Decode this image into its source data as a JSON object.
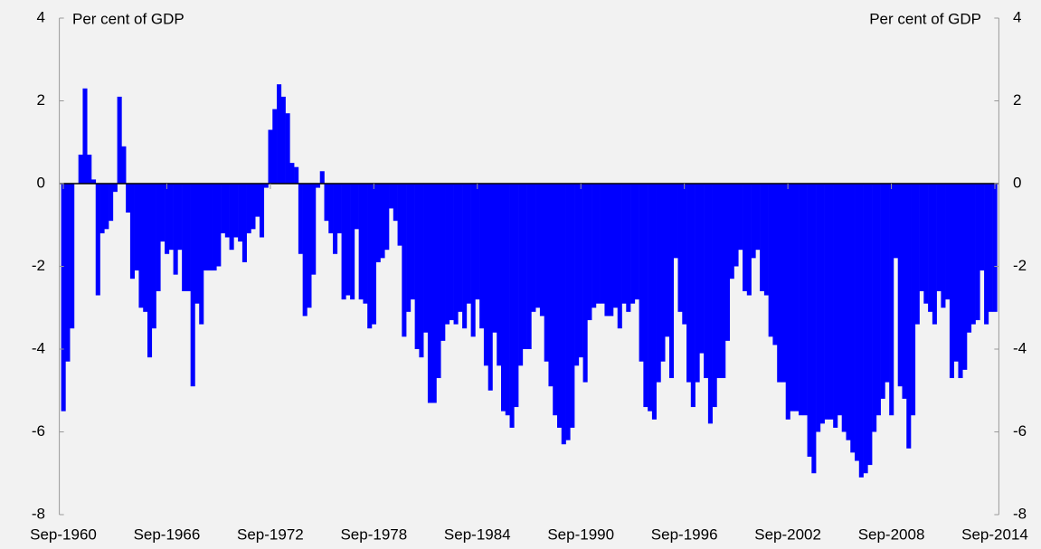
{
  "chart_data": {
    "type": "bar",
    "y_label": "Per cent of GDP",
    "y2_label": "Per cent of GDP",
    "color": "#0000ff",
    "ylim": [
      -8,
      4
    ],
    "yticks": [
      -8,
      -6,
      -4,
      -2,
      0,
      2,
      4
    ],
    "y2lim": [
      -8,
      4
    ],
    "y2ticks": [
      -8,
      -6,
      -4,
      -2,
      0,
      2,
      4
    ],
    "grid": false,
    "categories": [
      "Sep-1960",
      null,
      null,
      null,
      null,
      null,
      null,
      null,
      null,
      null,
      null,
      null,
      null,
      null,
      null,
      null,
      null,
      null,
      null,
      null,
      null,
      null,
      null,
      null,
      "Sep-1966",
      null,
      null,
      null,
      null,
      null,
      null,
      null,
      null,
      null,
      null,
      null,
      null,
      null,
      null,
      null,
      null,
      null,
      null,
      null,
      null,
      null,
      null,
      null,
      "Sep-1972",
      null,
      null,
      null,
      null,
      null,
      null,
      null,
      null,
      null,
      null,
      null,
      null,
      null,
      null,
      null,
      null,
      null,
      null,
      null,
      null,
      null,
      null,
      null,
      "Sep-1978",
      null,
      null,
      null,
      null,
      null,
      null,
      null,
      null,
      null,
      null,
      null,
      null,
      null,
      null,
      null,
      null,
      null,
      null,
      null,
      null,
      null,
      null,
      null,
      "Sep-1984",
      null,
      null,
      null,
      null,
      null,
      null,
      null,
      null,
      null,
      null,
      null,
      null,
      null,
      null,
      null,
      null,
      null,
      null,
      null,
      null,
      null,
      null,
      null,
      "Sep-1990",
      null,
      null,
      null,
      null,
      null,
      null,
      null,
      null,
      null,
      null,
      null,
      null,
      null,
      null,
      null,
      null,
      null,
      null,
      null,
      null,
      null,
      null,
      null,
      "Sep-1996",
      null,
      null,
      null,
      null,
      null,
      null,
      null,
      null,
      null,
      null,
      null,
      null,
      null,
      null,
      null,
      null,
      null,
      null,
      null,
      null,
      null,
      null,
      null,
      "Sep-2002",
      null,
      null,
      null,
      null,
      null,
      null,
      null,
      null,
      null,
      null,
      null,
      null,
      null,
      null,
      null,
      null,
      null,
      null,
      null,
      null,
      null,
      null,
      null,
      "Sep-2008",
      null,
      null,
      null,
      null,
      null,
      null,
      null,
      null,
      null,
      null,
      null,
      null,
      null,
      null,
      null,
      null,
      null,
      null,
      null,
      null,
      null,
      null,
      null,
      "Sep-2014"
    ],
    "values": [
      -5.5,
      -4.3,
      -3.5,
      0.0,
      0.7,
      2.3,
      0.7,
      0.1,
      -2.7,
      -1.2,
      -1.1,
      -0.9,
      -0.2,
      2.1,
      0.9,
      -0.7,
      -2.3,
      -2.1,
      -3.0,
      -3.1,
      -4.2,
      -3.5,
      -2.6,
      -1.4,
      -1.7,
      -1.6,
      -2.2,
      -1.6,
      -2.6,
      -2.6,
      -4.9,
      -2.9,
      -3.4,
      -2.1,
      -2.1,
      -2.1,
      -2.0,
      -1.2,
      -1.3,
      -1.6,
      -1.3,
      -1.4,
      -1.9,
      -1.2,
      -1.1,
      -0.8,
      -1.3,
      -0.1,
      1.3,
      1.8,
      2.4,
      2.1,
      1.7,
      0.5,
      0.4,
      -1.7,
      -3.2,
      -3.0,
      -2.2,
      -0.1,
      0.3,
      -0.9,
      -1.2,
      -1.7,
      -1.2,
      -2.8,
      -2.7,
      -2.8,
      -1.1,
      -2.8,
      -2.9,
      -3.5,
      -3.4,
      -1.9,
      -1.8,
      -1.6,
      -0.6,
      -0.9,
      -1.5,
      -3.7,
      -3.1,
      -2.8,
      -4.0,
      -4.2,
      -3.6,
      -5.3,
      -5.3,
      -4.7,
      -3.8,
      -3.4,
      -3.3,
      -3.4,
      -3.1,
      -3.5,
      -2.9,
      -3.7,
      -2.8,
      -3.5,
      -4.4,
      -5.0,
      -3.6,
      -4.4,
      -5.5,
      -5.6,
      -5.9,
      -5.4,
      -4.4,
      -4.0,
      -4.0,
      -3.1,
      -3.0,
      -3.2,
      -4.3,
      -4.9,
      -5.6,
      -5.9,
      -6.3,
      -6.2,
      -5.9,
      -4.4,
      -4.2,
      -4.8,
      -3.3,
      -3.0,
      -2.9,
      -2.9,
      -3.2,
      -3.2,
      -3.0,
      -3.5,
      -2.9,
      -3.1,
      -2.9,
      -2.8,
      -4.3,
      -5.4,
      -5.5,
      -5.7,
      -4.8,
      -4.3,
      -3.7,
      -4.7,
      -1.8,
      -3.1,
      -3.4,
      -4.8,
      -5.4,
      -4.8,
      -4.1,
      -4.7,
      -5.8,
      -5.4,
      -4.7,
      -4.7,
      -3.8,
      -2.3,
      -2.0,
      -1.6,
      -2.6,
      -2.7,
      -1.8,
      -1.6,
      -2.6,
      -2.7,
      -3.7,
      -3.9,
      -4.8,
      -4.8,
      -5.7,
      -5.5,
      -5.5,
      -5.6,
      -5.6,
      -6.6,
      -7.0,
      -6.0,
      -5.8,
      -5.7,
      -5.7,
      -5.9,
      -5.6,
      -6.0,
      -6.2,
      -6.5,
      -6.7,
      -7.1,
      -7.0,
      -6.8,
      -6.0,
      -5.6,
      -5.2,
      -4.8,
      -5.6,
      -1.8,
      -4.9,
      -5.2,
      -6.4,
      -5.6,
      -3.4,
      -2.6,
      -2.9,
      -3.1,
      -3.4,
      -2.6,
      -3.0,
      -2.8,
      -4.7,
      -4.3,
      -4.7,
      -4.5,
      -3.6,
      -3.4,
      -3.3,
      -2.1,
      -3.4,
      -3.1,
      -3.1
    ]
  }
}
